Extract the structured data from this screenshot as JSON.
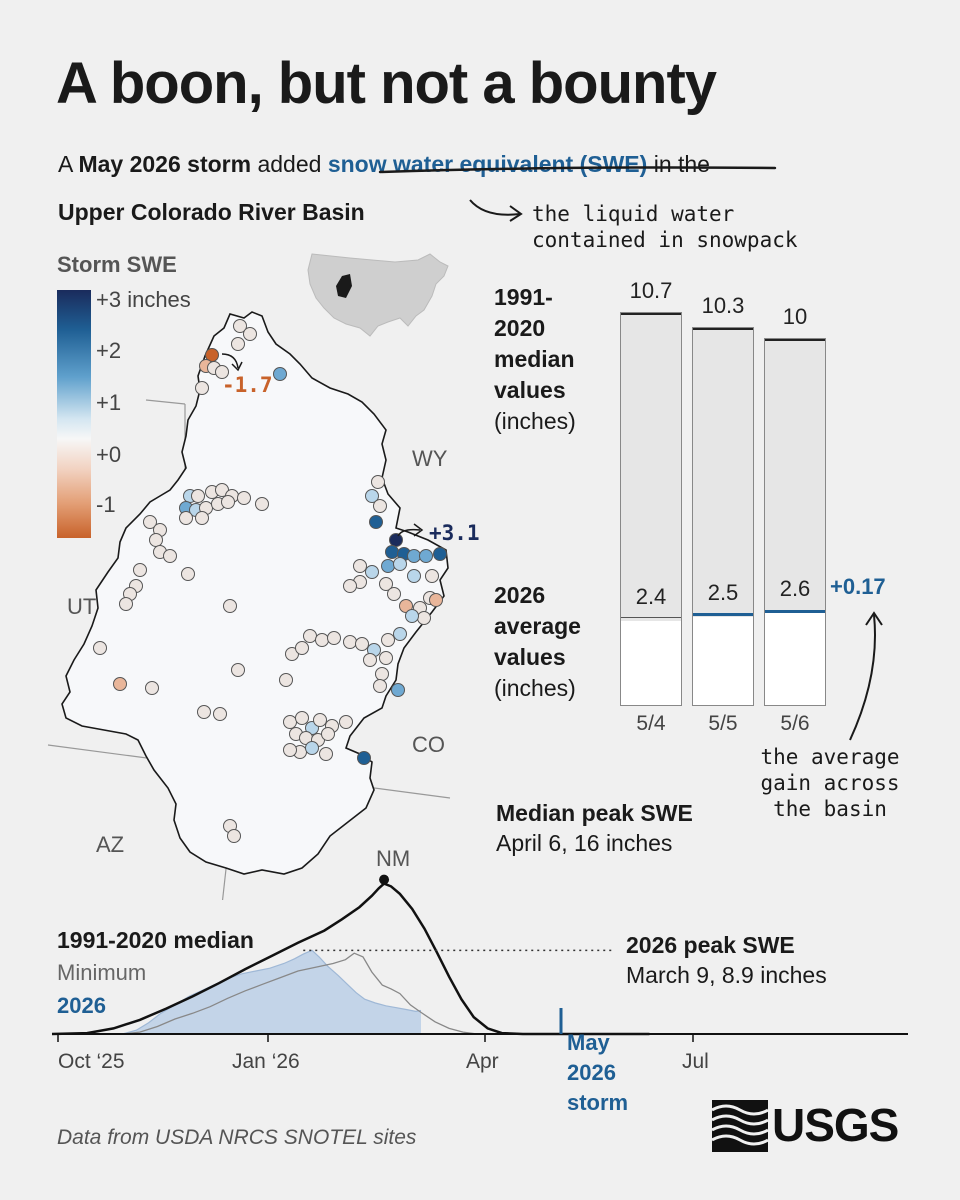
{
  "title": "A boon, but not a bounty",
  "subtitle": {
    "prefix": "A ",
    "bold1": "May 2026 storm",
    "mid": " added ",
    "term": "snow water equivalent (SWE)",
    "suffix": " in the",
    "bold2": "Upper Colorado River Basin"
  },
  "annotation_swe": [
    "the liquid water",
    "contained in snowpack"
  ],
  "legend": {
    "title": "Storm SWE",
    "labels": [
      "+3 inches",
      "+2",
      "+1",
      "+0",
      "-1"
    ]
  },
  "map": {
    "states": [
      "WY",
      "UT",
      "CO",
      "AZ",
      "NM"
    ],
    "callout_min": "-1.7",
    "callout_max": "+3.1",
    "colors": {
      "minus2": "#c8622a",
      "minus1": "#e9b69a",
      "zero": "#ece5e1",
      "plus05": "#b9d6ea",
      "plus1": "#6fa9d2",
      "plus2": "#1f5f94",
      "plus3": "#1a2b5c"
    }
  },
  "chart_data": [
    {
      "type": "bar",
      "categories": [
        "5/4",
        "5/5",
        "5/6"
      ],
      "series": [
        {
          "name": "1991-2020 median values (inches)",
          "values": [
            10.7,
            10.3,
            10
          ]
        },
        {
          "name": "2026 average values (inches)",
          "values": [
            2.4,
            2.5,
            2.6
          ]
        }
      ],
      "labels_median": [
        "1991-",
        "2020",
        "median",
        "values",
        "(inches)"
      ],
      "labels_current": [
        "2026",
        "average",
        "values",
        "(inches)"
      ],
      "gain_label": "+0.17",
      "gain_note": [
        "the average",
        "gain across",
        "the basin"
      ]
    },
    {
      "type": "line",
      "x_labels": [
        "Oct ‘25",
        "Jan ‘26",
        "Apr",
        "Jul"
      ],
      "series_labels": [
        "1991-2020 median",
        "Minimum",
        "2026"
      ],
      "median_peak": {
        "title": "Median peak SWE",
        "detail": "April 6, 16 inches",
        "value": 16
      },
      "peak_2026": {
        "title": "2026 peak SWE",
        "detail": "March 9, 8.9 inches",
        "value": 8.9
      },
      "storm_label": [
        "May",
        "2026",
        "storm"
      ],
      "median_curve": [
        [
          0,
          0
        ],
        [
          20,
          0.1
        ],
        [
          35,
          0.6
        ],
        [
          50,
          1.5
        ],
        [
          65,
          2.7
        ],
        [
          80,
          4.0
        ],
        [
          95,
          5.4
        ],
        [
          110,
          6.9
        ],
        [
          125,
          8.3
        ],
        [
          140,
          9.7
        ],
        [
          155,
          11.0
        ],
        [
          165,
          12.2
        ],
        [
          175,
          13.5
        ],
        [
          182,
          14.7
        ],
        [
          186,
          15.5
        ],
        [
          189,
          16.0
        ],
        [
          193,
          15.7
        ],
        [
          198,
          14.9
        ],
        [
          205,
          13.3
        ],
        [
          212,
          11.2
        ],
        [
          219,
          8.7
        ],
        [
          226,
          6.1
        ],
        [
          233,
          3.7
        ],
        [
          240,
          1.8
        ],
        [
          248,
          0.6
        ],
        [
          256,
          0.1
        ],
        [
          268,
          0
        ],
        [
          340,
          0
        ]
      ],
      "minimum_curve": [
        [
          0,
          0
        ],
        [
          40,
          0
        ],
        [
          50,
          0.2
        ],
        [
          60,
          0.8
        ],
        [
          70,
          1.6
        ],
        [
          80,
          2.2
        ],
        [
          90,
          2.9
        ],
        [
          100,
          3.8
        ],
        [
          110,
          4.6
        ],
        [
          120,
          5.3
        ],
        [
          130,
          6.0
        ],
        [
          140,
          6.7
        ],
        [
          150,
          7.1
        ],
        [
          160,
          7.5
        ],
        [
          167,
          7.9
        ],
        [
          172,
          8.6
        ],
        [
          177,
          8.2
        ],
        [
          182,
          6.6
        ],
        [
          188,
          5.2
        ],
        [
          193,
          4.8
        ],
        [
          198,
          4.3
        ],
        [
          204,
          3.1
        ],
        [
          210,
          2.3
        ],
        [
          218,
          1.3
        ],
        [
          226,
          0.6
        ],
        [
          234,
          0.2
        ],
        [
          242,
          0
        ],
        [
          340,
          0
        ]
      ],
      "current_curve": [
        [
          0,
          0
        ],
        [
          40,
          0
        ],
        [
          48,
          0.4
        ],
        [
          55,
          1.2
        ],
        [
          62,
          2.2
        ],
        [
          70,
          3.1
        ],
        [
          78,
          4.0
        ],
        [
          85,
          4.6
        ],
        [
          92,
          5.2
        ],
        [
          100,
          5.9
        ],
        [
          108,
          6.4
        ],
        [
          116,
          6.7
        ],
        [
          124,
          7.0
        ],
        [
          132,
          7.5
        ],
        [
          138,
          8.0
        ],
        [
          143,
          8.5
        ],
        [
          148,
          8.9
        ],
        [
          152,
          8.2
        ],
        [
          157,
          7.2
        ],
        [
          163,
          6.2
        ],
        [
          168,
          5.3
        ],
        [
          173,
          4.4
        ],
        [
          178,
          3.7
        ],
        [
          184,
          3.3
        ],
        [
          190,
          3.0
        ],
        [
          196,
          2.8
        ],
        [
          202,
          2.6
        ],
        [
          207,
          2.4
        ],
        [
          210,
          2.5
        ]
      ]
    }
  ],
  "footer": "Data from USDA NRCS SNOTEL sites",
  "logo_text": "USGS"
}
